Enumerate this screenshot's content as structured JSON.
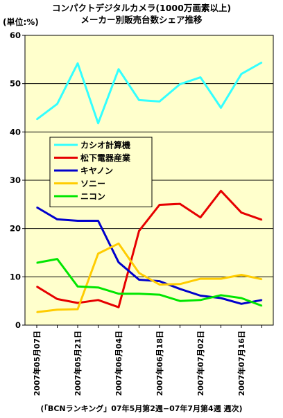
{
  "title": {
    "line1": "コンパクトデジタルカメラ(1000万画素以上)",
    "line2": "メーカー別販売台数シェア推移"
  },
  "unit_label": "(単位:%)",
  "source_note": "(「BCNランキング」07年5月第2週−07年7月第4週 週次)",
  "colors": {
    "plot_background": "#ffffcc",
    "gridline": "#000000"
  },
  "chart_data": {
    "type": "line",
    "ylim": [
      0,
      60
    ],
    "yticks": [
      0,
      10,
      20,
      30,
      40,
      50,
      60
    ],
    "grid": true,
    "legend_position": "left-middle",
    "x": [
      "2007年05月07日",
      "2007年05月14日",
      "2007年05月21日",
      "2007年05月28日",
      "2007年06月04日",
      "2007年06月11日",
      "2007年06月18日",
      "2007年06月25日",
      "2007年07月02日",
      "2007年07月09日",
      "2007年07月16日",
      "2007年07月23日"
    ],
    "xtick_labels": [
      {
        "index": 0,
        "label": "2007年05月07日"
      },
      {
        "index": 2,
        "label": "2007年05月21日"
      },
      {
        "index": 4,
        "label": "2007年06月04日"
      },
      {
        "index": 6,
        "label": "2007年06月18日"
      },
      {
        "index": 8,
        "label": "2007年07月02日"
      },
      {
        "index": 10,
        "label": "2007年07月16日"
      }
    ],
    "series": [
      {
        "name": "カシオ計算機",
        "color": "#33ffff",
        "values": [
          42.6,
          45.8,
          54.2,
          41.8,
          53.0,
          46.6,
          46.3,
          49.9,
          51.3,
          45.0,
          52.0,
          54.4
        ]
      },
      {
        "name": "松下電器産業",
        "color": "#e60000",
        "values": [
          8.0,
          5.4,
          4.6,
          5.2,
          3.7,
          19.5,
          24.9,
          25.1,
          22.3,
          27.8,
          23.3,
          21.8
        ]
      },
      {
        "name": "キヤノン",
        "color": "#0000cc",
        "values": [
          24.4,
          21.9,
          21.6,
          21.6,
          13.0,
          9.4,
          9.1,
          7.5,
          6.1,
          5.6,
          4.4,
          5.2
        ]
      },
      {
        "name": "ソニー",
        "color": "#ffcc00",
        "values": [
          2.7,
          3.2,
          3.3,
          14.8,
          16.9,
          10.8,
          8.4,
          8.5,
          9.6,
          9.6,
          10.4,
          9.5
        ]
      },
      {
        "name": "ニコン",
        "color": "#00e600",
        "values": [
          12.9,
          13.7,
          8.0,
          7.8,
          6.5,
          6.5,
          6.3,
          5.0,
          5.2,
          6.2,
          5.6,
          4.0
        ]
      }
    ]
  }
}
